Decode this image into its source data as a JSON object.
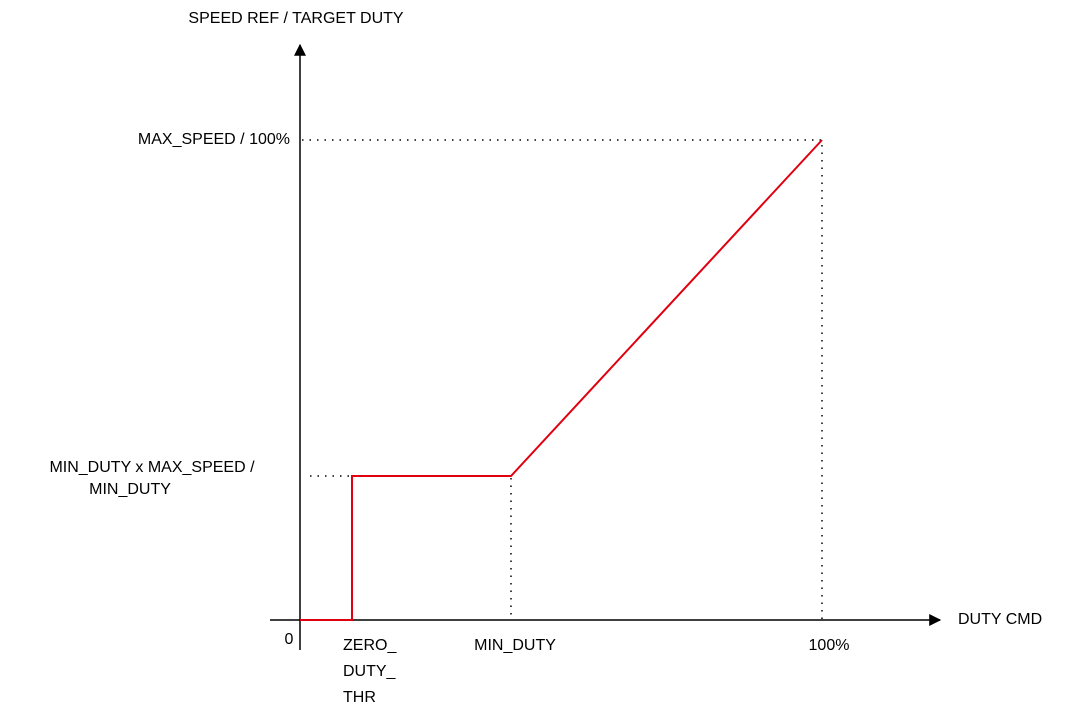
{
  "axes": {
    "y_title": "SPEED REF / TARGET DUTY",
    "x_title": "DUTY CMD",
    "origin": "0"
  },
  "y_labels": {
    "max": "MAX_SPEED / 100%",
    "min": [
      "MIN_DUTY x MAX_SPEED /",
      "MIN_DUTY"
    ]
  },
  "x_labels": {
    "zero_thr": [
      "ZERO_",
      "DUTY_",
      "THR"
    ],
    "min_duty": "MIN_DUTY",
    "full": "100%"
  }
}
